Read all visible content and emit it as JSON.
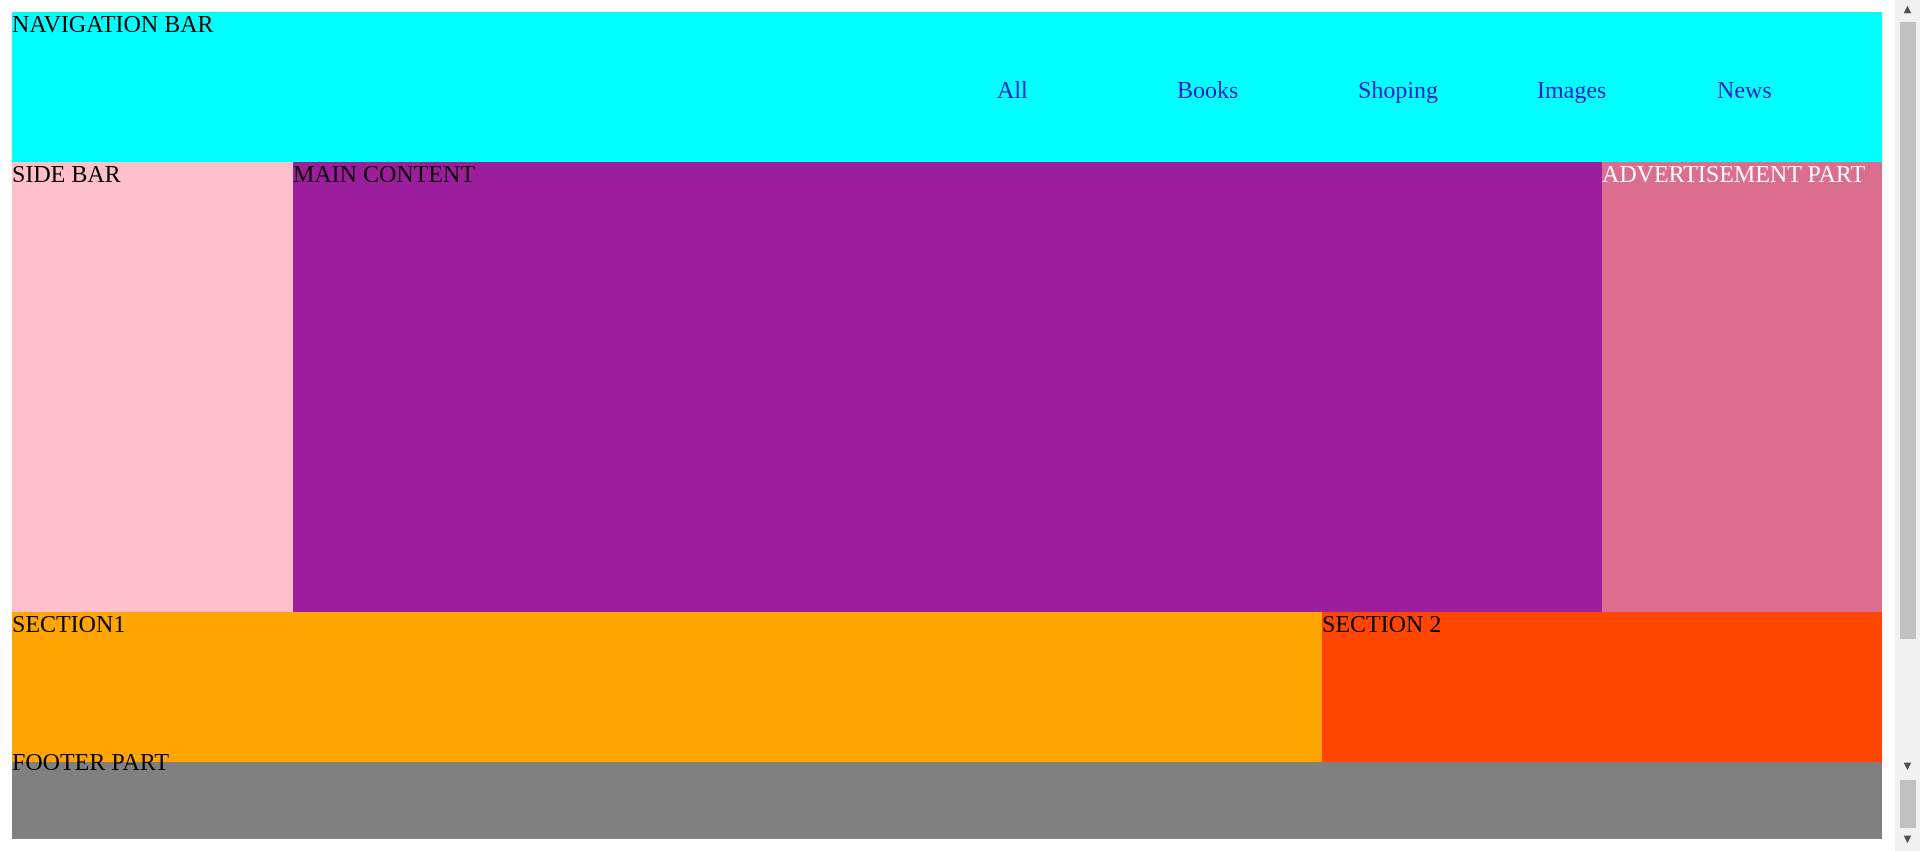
{
  "colors": {
    "navigation": "#00ffff",
    "sidebar": "#ffc0cb",
    "main": "#9c1e9c",
    "advertisement": "#db6e8f",
    "section1": "#ffa500",
    "section2": "#ff4500",
    "footer": "#808080",
    "link": "#2222cc",
    "advertisement_text": "#ffffff"
  },
  "navigation": {
    "label": "NAVIGATION BAR",
    "links": [
      "All",
      "Books",
      "Shoping",
      "Images",
      "News"
    ]
  },
  "sidebar": {
    "label": "SIDE BAR"
  },
  "main": {
    "label": "MAIN CONTENT"
  },
  "advertisement": {
    "label": "ADVERTISEMENT PART"
  },
  "section1": {
    "label": "SECTION1"
  },
  "section2": {
    "label": "SECTION 2"
  },
  "footer": {
    "label": "FOOTER PART"
  },
  "scrollbar": {
    "up_icon": "triangle-up-icon",
    "down_icon": "triangle-down-icon"
  }
}
